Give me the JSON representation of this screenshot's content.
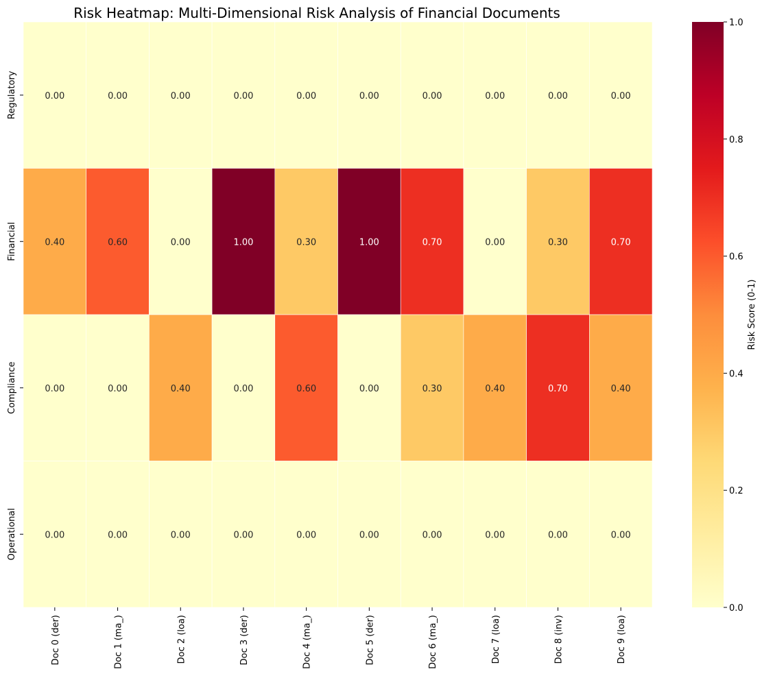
{
  "chart_data": {
    "type": "heatmap",
    "title": "Risk Heatmap: Multi-Dimensional Risk Analysis of Financial Documents",
    "xlabel": "",
    "ylabel": "",
    "columns": [
      "Doc 0 (der)",
      "Doc 1 (ma_)",
      "Doc 2 (loa)",
      "Doc 3 (der)",
      "Doc 4 (ma_)",
      "Doc 5 (der)",
      "Doc 6 (ma_)",
      "Doc 7 (loa)",
      "Doc 8 (inv)",
      "Doc 9 (loa)"
    ],
    "rows": [
      "Regulatory",
      "Financial",
      "Compliance",
      "Operational"
    ],
    "values": [
      [
        0.0,
        0.0,
        0.0,
        0.0,
        0.0,
        0.0,
        0.0,
        0.0,
        0.0,
        0.0
      ],
      [
        0.4,
        0.6,
        0.0,
        1.0,
        0.3,
        1.0,
        0.7,
        0.0,
        0.3,
        0.7
      ],
      [
        0.0,
        0.0,
        0.4,
        0.0,
        0.6,
        0.0,
        0.3,
        0.4,
        0.7,
        0.4
      ],
      [
        0.0,
        0.0,
        0.0,
        0.0,
        0.0,
        0.0,
        0.0,
        0.0,
        0.0,
        0.0
      ]
    ],
    "value_format": "0.00",
    "colorbar": {
      "label": "Risk Score (0-1)",
      "range": [
        0,
        1
      ],
      "ticks": [
        "0.0",
        "0.2",
        "0.4",
        "0.6",
        "0.8",
        "1.0"
      ],
      "colormap": "YlOrRd",
      "colors": [
        "#ffffcc",
        "#ffeda0",
        "#fed976",
        "#feb24c",
        "#fd8d3c",
        "#fc4e2a",
        "#e31a1c",
        "#bd0026",
        "#800026"
      ]
    },
    "grid": false,
    "legend": "colorbar-right"
  }
}
